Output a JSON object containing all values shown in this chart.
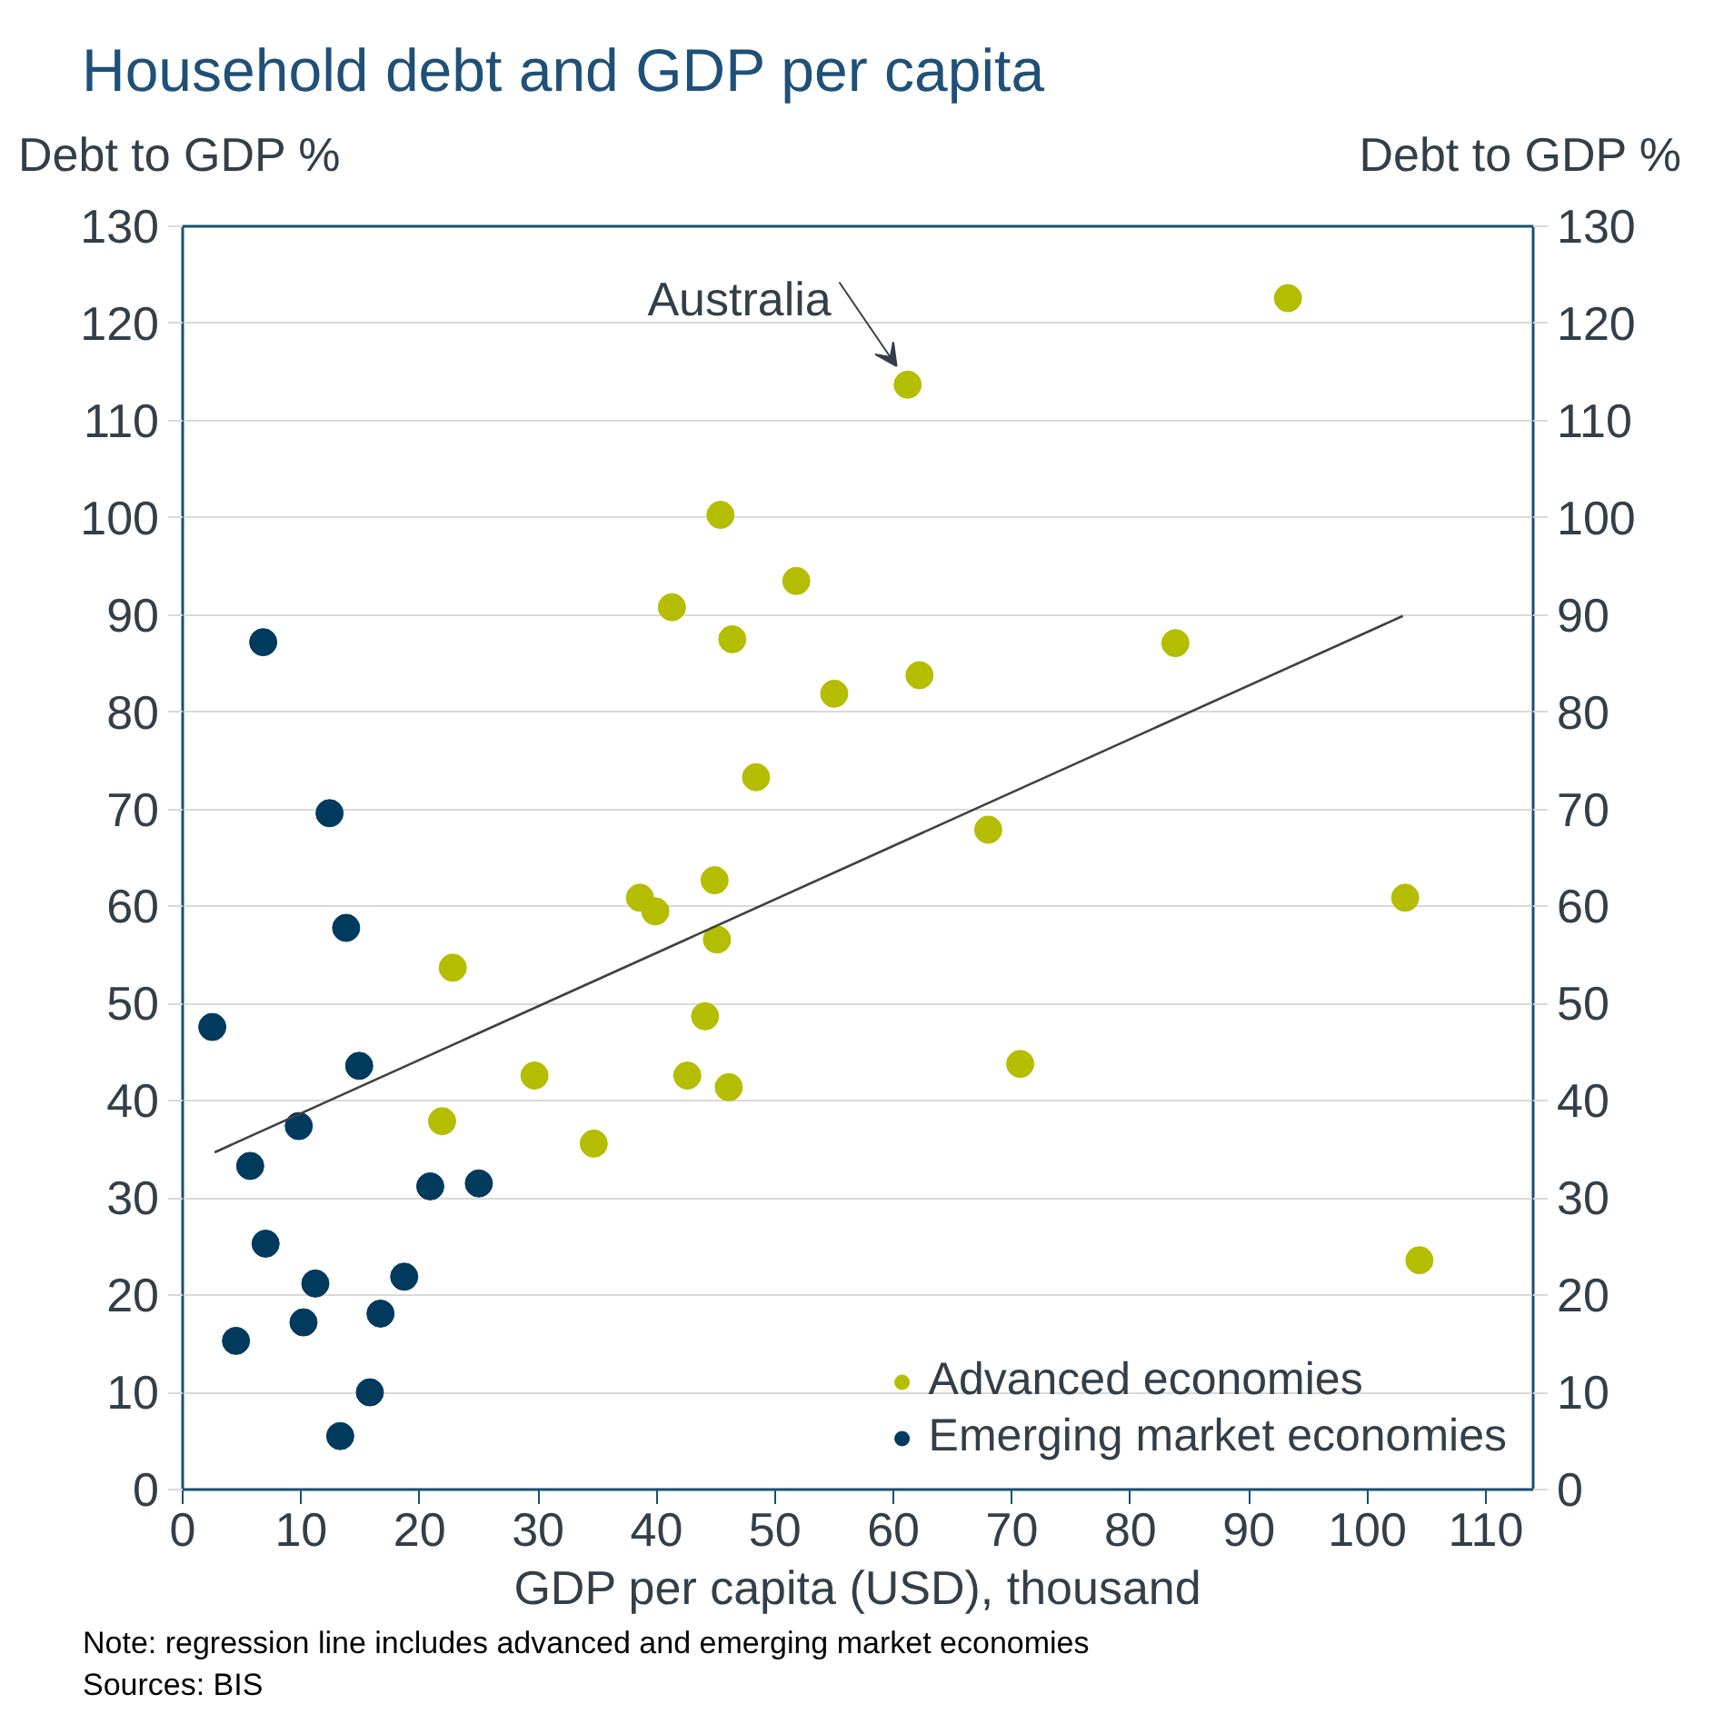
{
  "chart_data": {
    "type": "scatter",
    "title": "Household debt and GDP per capita",
    "xlabel": "GDP per capita (USD), thousand",
    "ylabel": "Debt to GDP %",
    "y2label": "Debt to GDP %",
    "series": [
      {
        "name": "Advanced economies",
        "color": "#b5bd00",
        "x": [
          61.2,
          93.3,
          45.4,
          41.3,
          51.8,
          46.4,
          55.0,
          48.4,
          62.2,
          83.8,
          68.0,
          103.2,
          70.7,
          104.4,
          38.6,
          39.9,
          44.9,
          45.1,
          22.8,
          44.1,
          29.7,
          42.6,
          46.1,
          21.9,
          34.7
        ],
        "values": [
          113.7,
          122.6,
          100.3,
          90.8,
          93.5,
          87.5,
          81.9,
          73.3,
          83.8,
          87.1,
          67.9,
          60.9,
          43.8,
          23.6,
          60.9,
          59.5,
          62.7,
          56.6,
          53.7,
          48.7,
          42.6,
          42.6,
          41.4,
          37.9,
          35.6
        ]
      },
      {
        "name": "Emerging market economies",
        "color": "#003a5d",
        "x": [
          6.8,
          12.4,
          13.8,
          2.5,
          14.9,
          9.8,
          5.7,
          20.9,
          25.0,
          7.0,
          11.2,
          18.7,
          10.2,
          16.7,
          4.5,
          15.8,
          13.3
        ],
        "values": [
          87.2,
          69.6,
          57.8,
          47.6,
          43.6,
          37.4,
          33.3,
          31.2,
          31.5,
          25.3,
          21.2,
          21.9,
          17.2,
          18.1,
          15.3,
          10.0,
          5.5
        ]
      },
      {
        "type": "line",
        "marker": "none",
        "color": "#404040",
        "x": [
          2.7,
          103.0
        ],
        "values": [
          34.7,
          89.9
        ]
      }
    ],
    "xlim": [
      0,
      114
    ],
    "xticks": [
      0,
      10,
      20,
      30,
      40,
      50,
      60,
      70,
      80,
      90,
      100,
      110
    ],
    "ylim": [
      0,
      130
    ],
    "yticks": [
      0,
      10,
      20,
      30,
      40,
      50,
      60,
      70,
      80,
      90,
      100,
      110,
      120,
      130
    ],
    "y2lim": [
      0,
      130
    ],
    "y2ticks": [
      0,
      10,
      20,
      30,
      40,
      50,
      60,
      70,
      80,
      90,
      100,
      110,
      120,
      130
    ],
    "grid": "y",
    "legend": "bottom right",
    "marker": "circle",
    "annotations": [
      {
        "text": "Australia",
        "x": 61.2,
        "y": 113.7
      },
      "Note: regression line includes advanced and emerging market economies",
      "Sources: BIS"
    ]
  }
}
